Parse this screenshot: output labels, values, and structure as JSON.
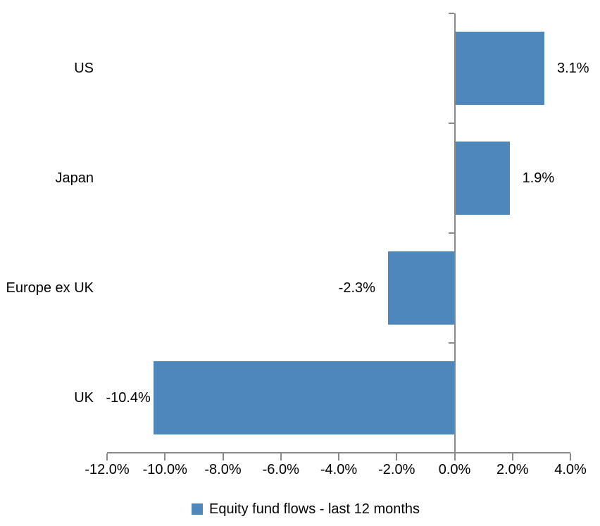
{
  "chart_data": {
    "type": "bar",
    "orientation": "horizontal",
    "title": "",
    "xlabel": "",
    "ylabel": "",
    "categories": [
      "US",
      "Japan",
      "Europe ex UK",
      "UK"
    ],
    "values": [
      3.1,
      1.9,
      -2.3,
      -10.4
    ],
    "value_labels": [
      "3.1%",
      "1.9%",
      "-2.3%",
      "-10.4%"
    ],
    "xlim": [
      -12,
      4
    ],
    "x_tick_values": [
      -12,
      -10,
      -8,
      -6,
      -4,
      -2,
      0,
      2,
      4
    ],
    "x_tick_labels": [
      "-12.0%",
      "-10.0%",
      "-8.0%",
      "-6.0%",
      "-4.0%",
      "-2.0%",
      "0.0%",
      "2.0%",
      "4.0%"
    ],
    "grid": false,
    "legend_position": "bottom",
    "legend": [
      {
        "label": "Equity fund flows - last 12 months",
        "color": "#4E87BC"
      }
    ],
    "bar_color": "#4E87BC",
    "axis_color": "#898989",
    "text_color": "#000000",
    "background_color": "#FFFFFF"
  }
}
